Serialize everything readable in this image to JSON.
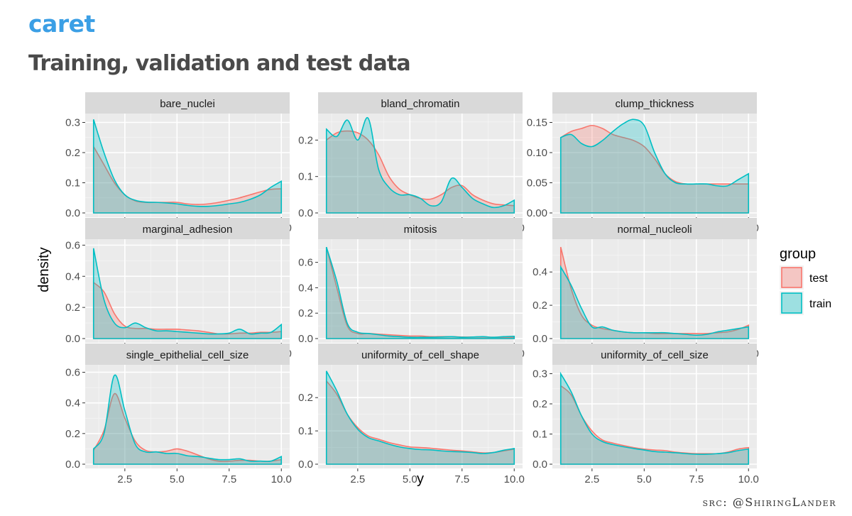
{
  "header": {
    "deck_title": "caret",
    "slide_title": "Training, validation and test data"
  },
  "footer": {
    "source": "src: @ShiringLander"
  },
  "colors": {
    "test": "#f8766d",
    "train": "#00bfc4",
    "panel_bg": "#ebebeb",
    "strip_bg": "#d9d9d9"
  },
  "chart_data": {
    "type": "area",
    "title": "",
    "xlabel": "y",
    "ylabel": "density",
    "xlim": [
      0.6,
      10.4
    ],
    "xticks": [
      "2.5",
      "5.0",
      "7.5",
      "10.0"
    ],
    "legend": {
      "title": "group",
      "position": "right",
      "entries": [
        "test",
        "train"
      ]
    },
    "x": [
      1,
      1.5,
      2,
      2.5,
      3,
      3.5,
      4,
      4.5,
      5,
      5.5,
      6,
      6.5,
      7,
      7.5,
      8,
      8.5,
      9,
      9.5,
      10
    ],
    "facets": [
      {
        "name": "bare_nuclei",
        "ylim": [
          0,
          0.32
        ],
        "yticks": [
          "0.0",
          "0.1",
          "0.2",
          "0.3"
        ],
        "series": [
          {
            "name": "test",
            "values": [
              0.22,
              0.16,
              0.1,
              0.06,
              0.04,
              0.035,
              0.035,
              0.035,
              0.035,
              0.03,
              0.028,
              0.03,
              0.035,
              0.042,
              0.05,
              0.06,
              0.07,
              0.078,
              0.08
            ]
          },
          {
            "name": "train",
            "values": [
              0.31,
              0.2,
              0.11,
              0.06,
              0.042,
              0.036,
              0.035,
              0.033,
              0.03,
              0.025,
              0.022,
              0.022,
              0.025,
              0.03,
              0.035,
              0.045,
              0.06,
              0.085,
              0.105
            ]
          }
        ]
      },
      {
        "name": "bland_chromatin",
        "ylim": [
          0,
          0.265
        ],
        "yticks": [
          "0.0",
          "0.1",
          "0.2"
        ],
        "series": [
          {
            "name": "test",
            "values": [
              0.2,
              0.22,
              0.225,
              0.22,
              0.2,
              0.16,
              0.1,
              0.065,
              0.05,
              0.04,
              0.038,
              0.05,
              0.07,
              0.075,
              0.05,
              0.035,
              0.025,
              0.022,
              0.02
            ]
          },
          {
            "name": "train",
            "values": [
              0.23,
              0.21,
              0.255,
              0.2,
              0.26,
              0.12,
              0.07,
              0.05,
              0.05,
              0.04,
              0.02,
              0.03,
              0.095,
              0.07,
              0.04,
              0.025,
              0.015,
              0.02,
              0.035
            ]
          }
        ]
      },
      {
        "name": "clump_thickness",
        "ylim": [
          0,
          0.16
        ],
        "yticks": [
          "0.00",
          "0.05",
          "0.10",
          "0.15"
        ],
        "series": [
          {
            "name": "test",
            "values": [
              0.125,
              0.135,
              0.14,
              0.145,
              0.14,
              0.13,
              0.125,
              0.12,
              0.11,
              0.09,
              0.065,
              0.052,
              0.048,
              0.048,
              0.048,
              0.048,
              0.048,
              0.048,
              0.048
            ]
          },
          {
            "name": "train",
            "values": [
              0.125,
              0.13,
              0.115,
              0.11,
              0.12,
              0.135,
              0.148,
              0.155,
              0.145,
              0.1,
              0.065,
              0.05,
              0.048,
              0.048,
              0.048,
              0.045,
              0.045,
              0.055,
              0.065
            ]
          }
        ]
      },
      {
        "name": "marginal_adhesion",
        "ylim": [
          0,
          0.62
        ],
        "yticks": [
          "0.0",
          "0.2",
          "0.4",
          "0.6"
        ],
        "series": [
          {
            "name": "test",
            "values": [
              0.36,
              0.3,
              0.16,
              0.08,
              0.065,
              0.065,
              0.06,
              0.06,
              0.06,
              0.055,
              0.05,
              0.04,
              0.03,
              0.03,
              0.035,
              0.035,
              0.04,
              0.04,
              0.045
            ]
          },
          {
            "name": "train",
            "values": [
              0.58,
              0.25,
              0.1,
              0.07,
              0.1,
              0.07,
              0.05,
              0.05,
              0.045,
              0.04,
              0.035,
              0.03,
              0.03,
              0.035,
              0.06,
              0.03,
              0.035,
              0.04,
              0.09
            ]
          }
        ]
      },
      {
        "name": "mitosis",
        "ylim": [
          0,
          0.76
        ],
        "yticks": [
          "0.0",
          "0.2",
          "0.4",
          "0.6"
        ],
        "series": [
          {
            "name": "test",
            "values": [
              0.72,
              0.4,
              0.1,
              0.04,
              0.04,
              0.035,
              0.03,
              0.025,
              0.02,
              0.02,
              0.015,
              0.015,
              0.015,
              0.012,
              0.012,
              0.012,
              0.01,
              0.01,
              0.01
            ]
          },
          {
            "name": "train",
            "values": [
              0.72,
              0.45,
              0.12,
              0.05,
              0.04,
              0.03,
              0.02,
              0.015,
              0.01,
              0.01,
              0.01,
              0.012,
              0.015,
              0.01,
              0.012,
              0.015,
              0.01,
              0.015,
              0.018
            ]
          }
        ]
      },
      {
        "name": "normal_nucleoli",
        "ylim": [
          0,
          0.58
        ],
        "yticks": [
          "0.0",
          "0.2",
          "0.4"
        ],
        "series": [
          {
            "name": "test",
            "values": [
              0.55,
              0.3,
              0.14,
              0.08,
              0.06,
              0.05,
              0.04,
              0.035,
              0.035,
              0.03,
              0.03,
              0.03,
              0.03,
              0.03,
              0.03,
              0.035,
              0.04,
              0.055,
              0.08
            ]
          },
          {
            "name": "train",
            "values": [
              0.43,
              0.32,
              0.18,
              0.07,
              0.07,
              0.05,
              0.04,
              0.035,
              0.035,
              0.035,
              0.035,
              0.03,
              0.025,
              0.02,
              0.025,
              0.04,
              0.05,
              0.06,
              0.07
            ]
          }
        ]
      },
      {
        "name": "single_epithelial_cell_size",
        "ylim": [
          0,
          0.63
        ],
        "yticks": [
          "0.0",
          "0.2",
          "0.4",
          "0.6"
        ],
        "series": [
          {
            "name": "test",
            "values": [
              0.09,
              0.22,
              0.46,
              0.3,
              0.15,
              0.09,
              0.08,
              0.085,
              0.1,
              0.085,
              0.06,
              0.035,
              0.02,
              0.02,
              0.025,
              0.025,
              0.02,
              0.02,
              0.03
            ]
          },
          {
            "name": "train",
            "values": [
              0.1,
              0.2,
              0.58,
              0.35,
              0.13,
              0.08,
              0.08,
              0.07,
              0.07,
              0.055,
              0.05,
              0.04,
              0.03,
              0.03,
              0.035,
              0.02,
              0.02,
              0.02,
              0.05
            ]
          }
        ]
      },
      {
        "name": "uniformity_of_cell_shape",
        "ylim": [
          0,
          0.29
        ],
        "yticks": [
          "0.0",
          "0.1",
          "0.2"
        ],
        "series": [
          {
            "name": "test",
            "values": [
              0.25,
              0.21,
              0.15,
              0.11,
              0.085,
              0.075,
              0.065,
              0.058,
              0.052,
              0.05,
              0.048,
              0.045,
              0.042,
              0.04,
              0.037,
              0.034,
              0.035,
              0.04,
              0.045
            ]
          },
          {
            "name": "train",
            "values": [
              0.28,
              0.22,
              0.15,
              0.105,
              0.08,
              0.07,
              0.06,
              0.052,
              0.047,
              0.044,
              0.043,
              0.04,
              0.038,
              0.037,
              0.035,
              0.032,
              0.035,
              0.042,
              0.047
            ]
          }
        ]
      },
      {
        "name": "uniformity_of_cell_size",
        "ylim": [
          0,
          0.32
        ],
        "yticks": [
          "0.0",
          "0.1",
          "0.2",
          "0.3"
        ],
        "series": [
          {
            "name": "test",
            "values": [
              0.26,
              0.23,
              0.16,
              0.11,
              0.08,
              0.07,
              0.062,
              0.055,
              0.05,
              0.047,
              0.045,
              0.04,
              0.037,
              0.035,
              0.035,
              0.035,
              0.04,
              0.05,
              0.055
            ]
          },
          {
            "name": "train",
            "values": [
              0.3,
              0.24,
              0.16,
              0.1,
              0.075,
              0.065,
              0.058,
              0.052,
              0.047,
              0.042,
              0.04,
              0.038,
              0.035,
              0.033,
              0.033,
              0.035,
              0.038,
              0.045,
              0.05
            ]
          }
        ]
      }
    ]
  }
}
